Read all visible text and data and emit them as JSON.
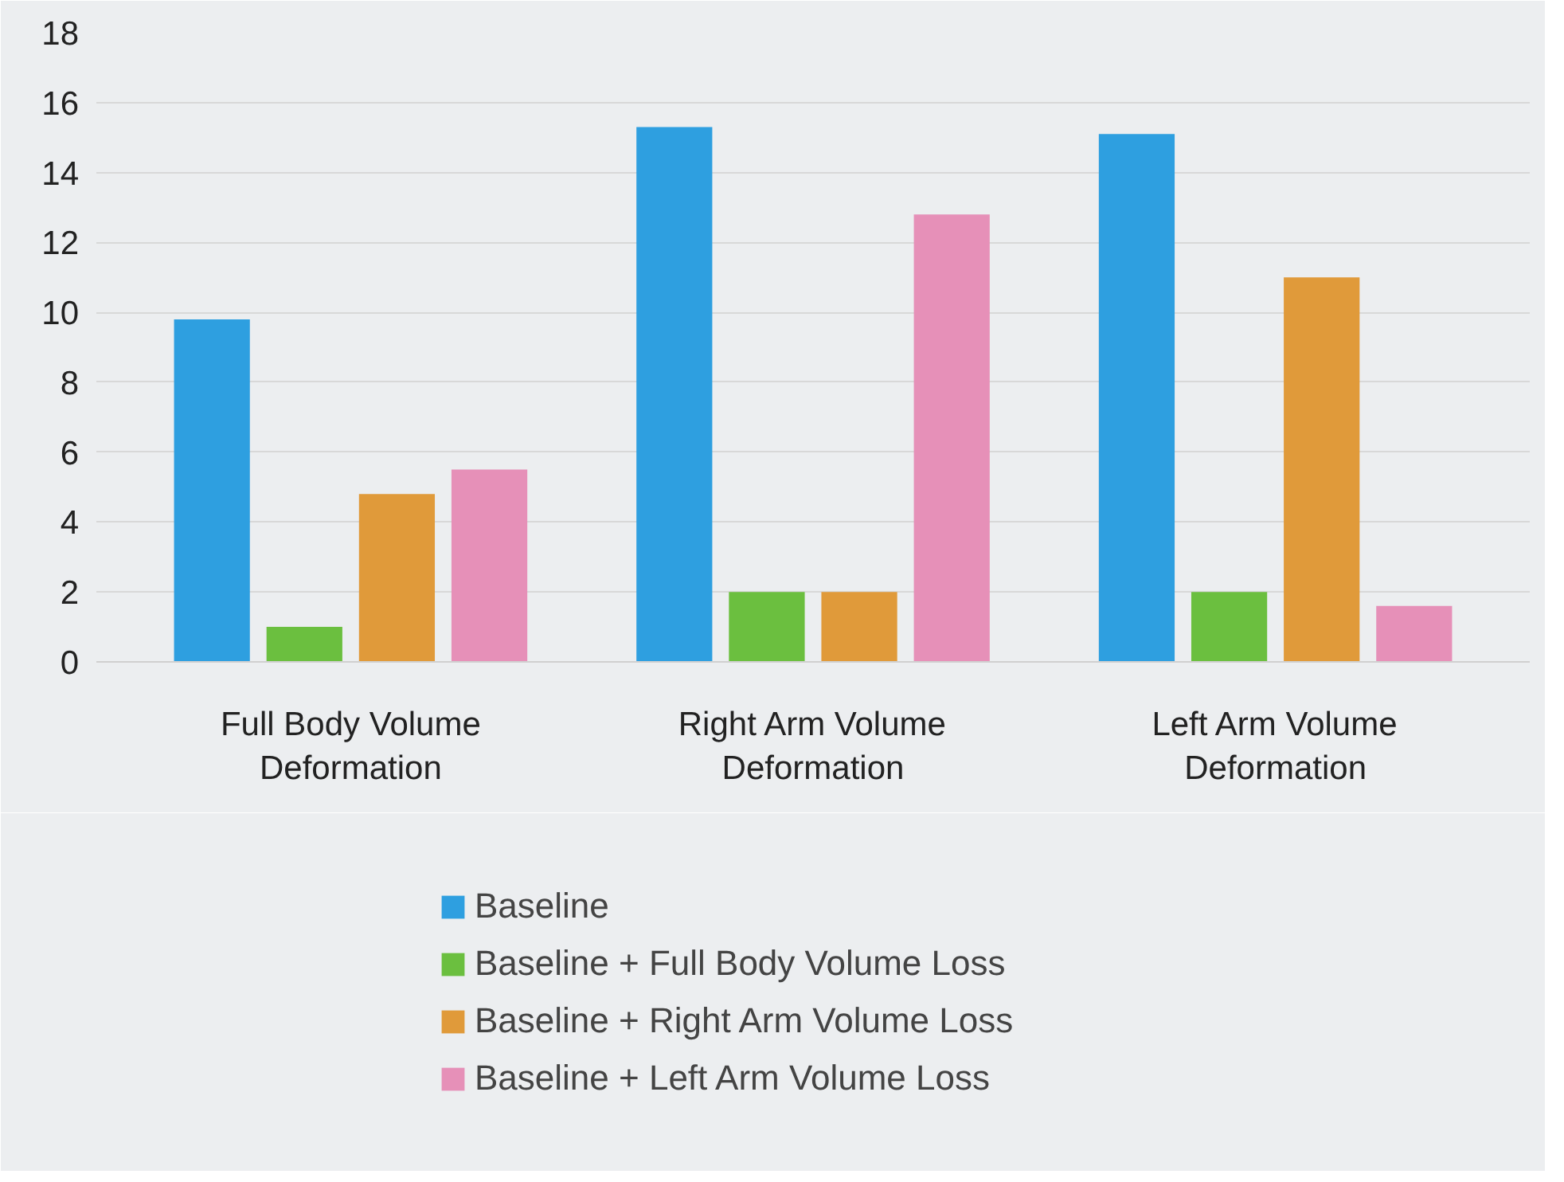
{
  "chart_data": {
    "type": "bar",
    "categories": [
      "Full Body Volume Deformation",
      "Right Arm Volume Deformation",
      "Left Arm Volume Deformation"
    ],
    "series": [
      {
        "name": "Baseline",
        "color": "#2e9fe0",
        "values": [
          9.8,
          15.3,
          15.1
        ]
      },
      {
        "name": "Baseline + Full Body Volume Loss",
        "color": "#6bbf3f",
        "values": [
          1.0,
          2.0,
          2.0
        ]
      },
      {
        "name": "Baseline + Right Arm Volume Loss",
        "color": "#e09a3a",
        "values": [
          4.8,
          2.0,
          11.0
        ]
      },
      {
        "name": "Baseline + Left Arm Volume Loss",
        "color": "#e690b8",
        "values": [
          5.5,
          12.8,
          1.6
        ]
      }
    ],
    "ylim": [
      0,
      18
    ],
    "yticks": [
      0,
      2,
      4,
      6,
      8,
      10,
      12,
      14,
      16,
      18
    ],
    "grid": "y",
    "legend": "bottom"
  }
}
